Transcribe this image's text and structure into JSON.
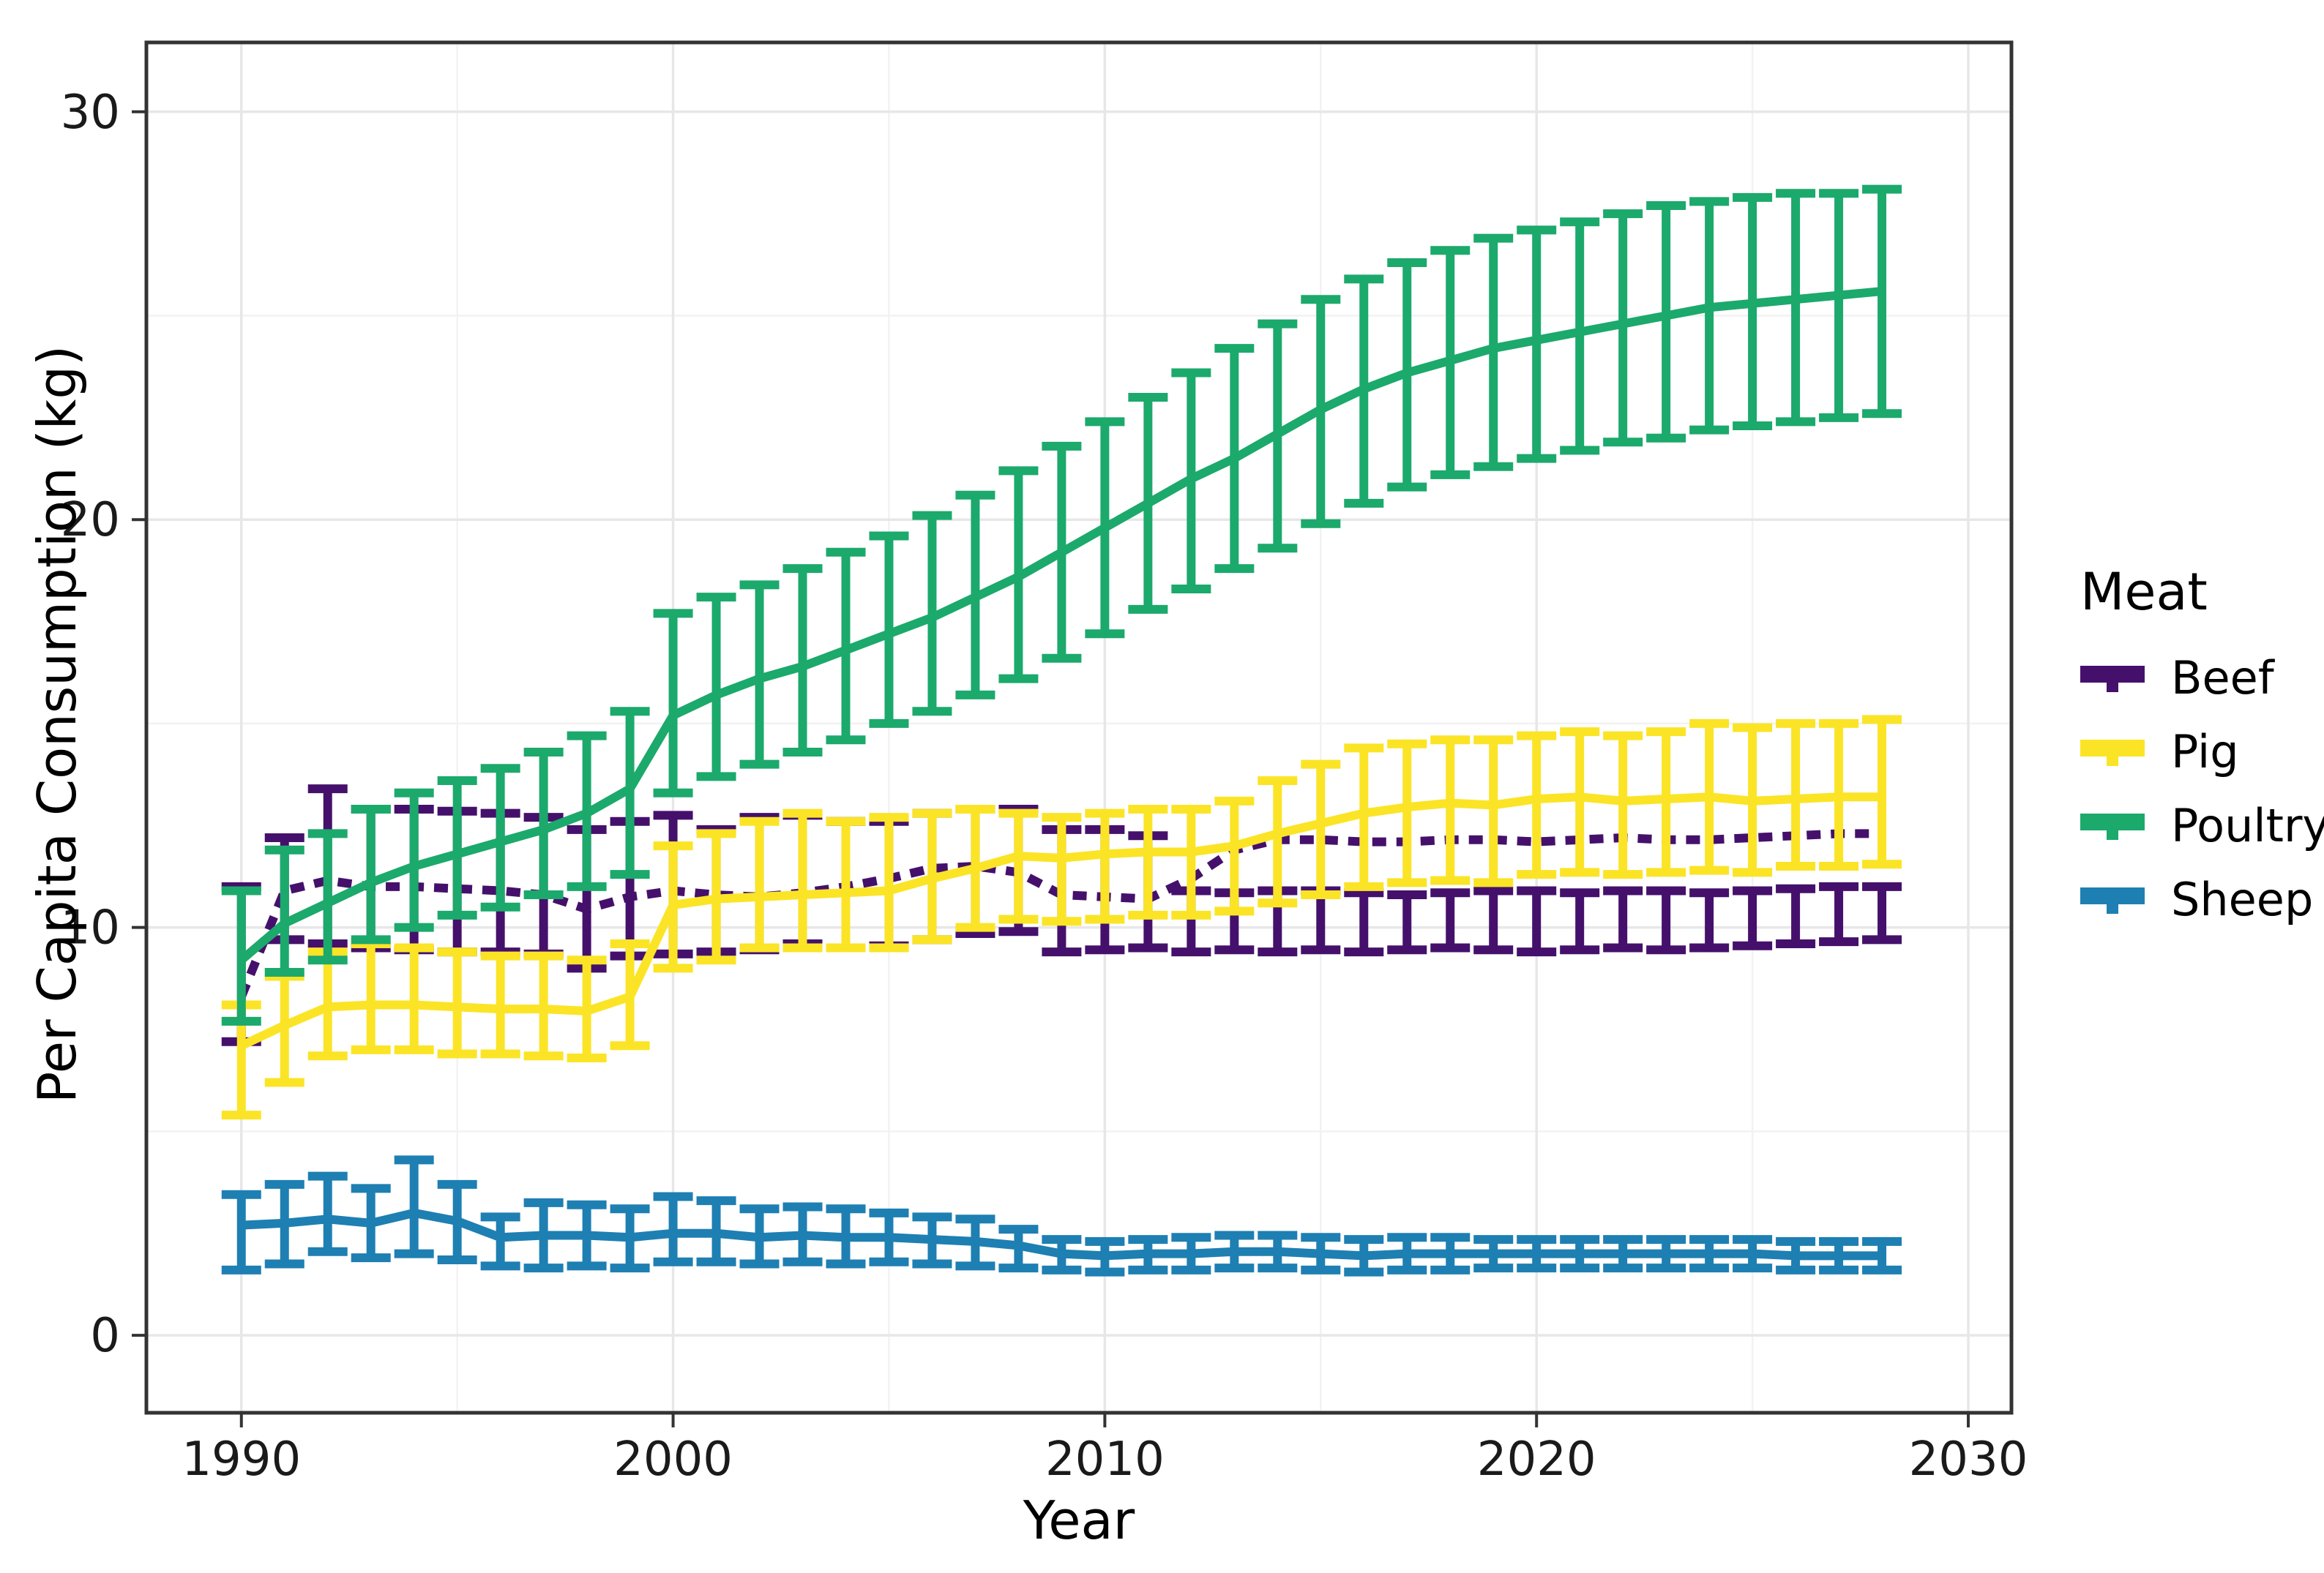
{
  "chart_data": {
    "type": "line",
    "title": "",
    "xlabel": "Year",
    "ylabel": "Per Capita Consumption (kg)",
    "legend_title": "Meat",
    "legend_position": "right",
    "grid": "on",
    "xlim": [
      1987.8,
      2031.0
    ],
    "ylim": [
      -1.9,
      31.7
    ],
    "x_ticks": [
      1990,
      2000,
      2010,
      2020,
      2030
    ],
    "x_minor_ticks": [
      1995,
      2005,
      2015,
      2025
    ],
    "y_ticks": [
      0,
      10,
      20,
      30
    ],
    "y_minor_ticks": [
      5,
      15,
      25
    ],
    "background_color": "#ffffff",
    "panel_border_color": "#333333",
    "major_grid_color": "#e7e7e7",
    "minor_grid_color": "#f2f2f2",
    "tick_label_color": "#1a1a1a",
    "x": [
      1990,
      1991,
      1992,
      1993,
      1994,
      1995,
      1996,
      1997,
      1998,
      1999,
      2000,
      2001,
      2002,
      2003,
      2004,
      2005,
      2006,
      2007,
      2008,
      2009,
      2010,
      2011,
      2012,
      2013,
      2014,
      2015,
      2016,
      2017,
      2018,
      2019,
      2020,
      2021,
      2022,
      2023,
      2024,
      2025,
      2026,
      2027,
      2028
    ],
    "series": [
      {
        "name": "Beef",
        "color": "#45106B",
        "linetype": "dashed",
        "y": [
          8.3,
          10.9,
          11.15,
          11.0,
          11.0,
          10.95,
          10.9,
          10.8,
          10.45,
          10.75,
          10.9,
          10.8,
          10.75,
          10.85,
          11.0,
          11.2,
          11.45,
          11.5,
          11.35,
          10.8,
          10.75,
          10.7,
          11.2,
          11.9,
          12.15,
          12.15,
          12.1,
          12.1,
          12.15,
          12.15,
          12.1,
          12.15,
          12.2,
          12.15,
          12.15,
          12.2,
          12.25,
          12.3,
          12.3
        ],
        "lo": [
          7.2,
          9.7,
          9.6,
          9.5,
          9.45,
          9.4,
          9.4,
          9.35,
          9.0,
          9.3,
          9.35,
          9.4,
          9.45,
          9.6,
          9.5,
          9.55,
          9.7,
          9.85,
          9.9,
          9.4,
          9.45,
          9.5,
          9.4,
          9.45,
          9.4,
          9.45,
          9.4,
          9.45,
          9.5,
          9.45,
          9.4,
          9.45,
          9.5,
          9.45,
          9.5,
          9.55,
          9.6,
          9.65,
          9.7
        ],
        "hi": [
          11.0,
          12.2,
          13.4,
          12.9,
          12.9,
          12.85,
          12.8,
          12.7,
          12.4,
          12.6,
          12.75,
          12.4,
          12.7,
          12.75,
          12.6,
          12.6,
          12.8,
          12.9,
          12.9,
          12.4,
          12.4,
          12.25,
          10.9,
          10.85,
          10.9,
          10.9,
          10.85,
          10.8,
          10.85,
          10.9,
          10.9,
          10.85,
          10.9,
          10.9,
          10.85,
          10.9,
          10.95,
          11.0,
          11.0
        ]
      },
      {
        "name": "Pig",
        "color": "#FBE426",
        "linetype": "solid",
        "y": [
          7.1,
          7.6,
          8.05,
          8.1,
          8.1,
          8.05,
          8.0,
          8.0,
          7.95,
          8.3,
          10.55,
          10.7,
          10.75,
          10.8,
          10.85,
          10.9,
          11.2,
          11.45,
          11.75,
          11.7,
          11.8,
          11.85,
          11.85,
          12.0,
          12.3,
          12.55,
          12.8,
          12.95,
          13.05,
          13.0,
          13.15,
          13.2,
          13.1,
          13.15,
          13.2,
          13.1,
          13.15,
          13.2,
          13.2
        ],
        "lo": [
          5.4,
          6.2,
          6.85,
          7.0,
          7.0,
          6.9,
          6.9,
          6.85,
          6.8,
          7.1,
          9.0,
          9.2,
          9.5,
          9.5,
          9.5,
          9.5,
          9.7,
          10.0,
          10.2,
          10.15,
          10.2,
          10.3,
          10.3,
          10.4,
          10.6,
          10.8,
          11.0,
          11.1,
          11.15,
          11.1,
          11.3,
          11.35,
          11.3,
          11.35,
          11.4,
          11.35,
          11.5,
          11.5,
          11.55
        ],
        "hi": [
          8.1,
          8.8,
          9.4,
          9.6,
          9.5,
          9.4,
          9.3,
          9.3,
          9.2,
          9.6,
          12.0,
          12.3,
          12.6,
          12.8,
          12.6,
          12.7,
          12.8,
          12.9,
          12.8,
          12.7,
          12.8,
          12.9,
          12.9,
          13.1,
          13.6,
          14.0,
          14.4,
          14.5,
          14.6,
          14.6,
          14.7,
          14.8,
          14.7,
          14.8,
          15.0,
          14.9,
          15.0,
          15.0,
          15.1
        ]
      },
      {
        "name": "Poultry",
        "color": "#1CA96C",
        "linetype": "solid",
        "y": [
          9.2,
          10.1,
          10.6,
          11.1,
          11.5,
          11.8,
          12.1,
          12.4,
          12.8,
          13.4,
          15.2,
          15.7,
          16.1,
          16.4,
          16.8,
          17.2,
          17.6,
          18.1,
          18.6,
          19.2,
          19.8,
          20.4,
          21.0,
          21.5,
          22.1,
          22.7,
          23.2,
          23.6,
          23.9,
          24.2,
          24.4,
          24.6,
          24.8,
          25.0,
          25.2,
          25.3,
          25.4,
          25.5,
          25.6
        ],
        "lo": [
          7.7,
          8.9,
          9.2,
          9.7,
          10.0,
          10.3,
          10.5,
          10.8,
          11.0,
          11.3,
          13.3,
          13.7,
          14.0,
          14.3,
          14.6,
          15.0,
          15.3,
          15.7,
          16.1,
          16.6,
          17.2,
          17.8,
          18.3,
          18.8,
          19.3,
          19.9,
          20.4,
          20.8,
          21.1,
          21.3,
          21.5,
          21.7,
          21.9,
          22.0,
          22.2,
          22.3,
          22.4,
          22.5,
          22.6
        ],
        "hi": [
          10.9,
          11.9,
          12.3,
          12.9,
          13.3,
          13.6,
          13.9,
          14.3,
          14.7,
          15.3,
          17.7,
          18.1,
          18.4,
          18.8,
          19.2,
          19.6,
          20.1,
          20.6,
          21.2,
          21.8,
          22.4,
          23.0,
          23.6,
          24.2,
          24.8,
          25.4,
          25.9,
          26.3,
          26.6,
          26.9,
          27.1,
          27.3,
          27.5,
          27.7,
          27.8,
          27.9,
          28.0,
          28.0,
          28.1
        ]
      },
      {
        "name": "Sheep",
        "color": "#1E7FB2",
        "linetype": "solid",
        "y": [
          2.7,
          2.75,
          2.85,
          2.75,
          3.0,
          2.8,
          2.4,
          2.45,
          2.45,
          2.4,
          2.5,
          2.5,
          2.4,
          2.45,
          2.4,
          2.4,
          2.35,
          2.3,
          2.2,
          2.0,
          1.95,
          2.0,
          2.0,
          2.05,
          2.05,
          2.0,
          1.95,
          2.0,
          2.0,
          2.0,
          2.0,
          2.0,
          2.0,
          2.0,
          2.0,
          2.0,
          1.95,
          1.95,
          1.95
        ],
        "lo": [
          1.6,
          1.75,
          2.05,
          1.9,
          2.0,
          1.85,
          1.7,
          1.65,
          1.7,
          1.65,
          1.8,
          1.8,
          1.75,
          1.8,
          1.75,
          1.8,
          1.75,
          1.7,
          1.65,
          1.6,
          1.55,
          1.6,
          1.6,
          1.65,
          1.65,
          1.6,
          1.55,
          1.6,
          1.6,
          1.65,
          1.65,
          1.65,
          1.65,
          1.65,
          1.65,
          1.65,
          1.6,
          1.6,
          1.6
        ],
        "hi": [
          3.45,
          3.7,
          3.9,
          3.6,
          4.3,
          3.7,
          2.9,
          3.25,
          3.2,
          3.1,
          3.4,
          3.3,
          3.1,
          3.15,
          3.1,
          3.0,
          2.9,
          2.85,
          2.6,
          2.35,
          2.3,
          2.35,
          2.4,
          2.45,
          2.45,
          2.4,
          2.35,
          2.4,
          2.4,
          2.35,
          2.35,
          2.35,
          2.35,
          2.35,
          2.35,
          2.35,
          2.3,
          2.3,
          2.3
        ]
      }
    ]
  }
}
